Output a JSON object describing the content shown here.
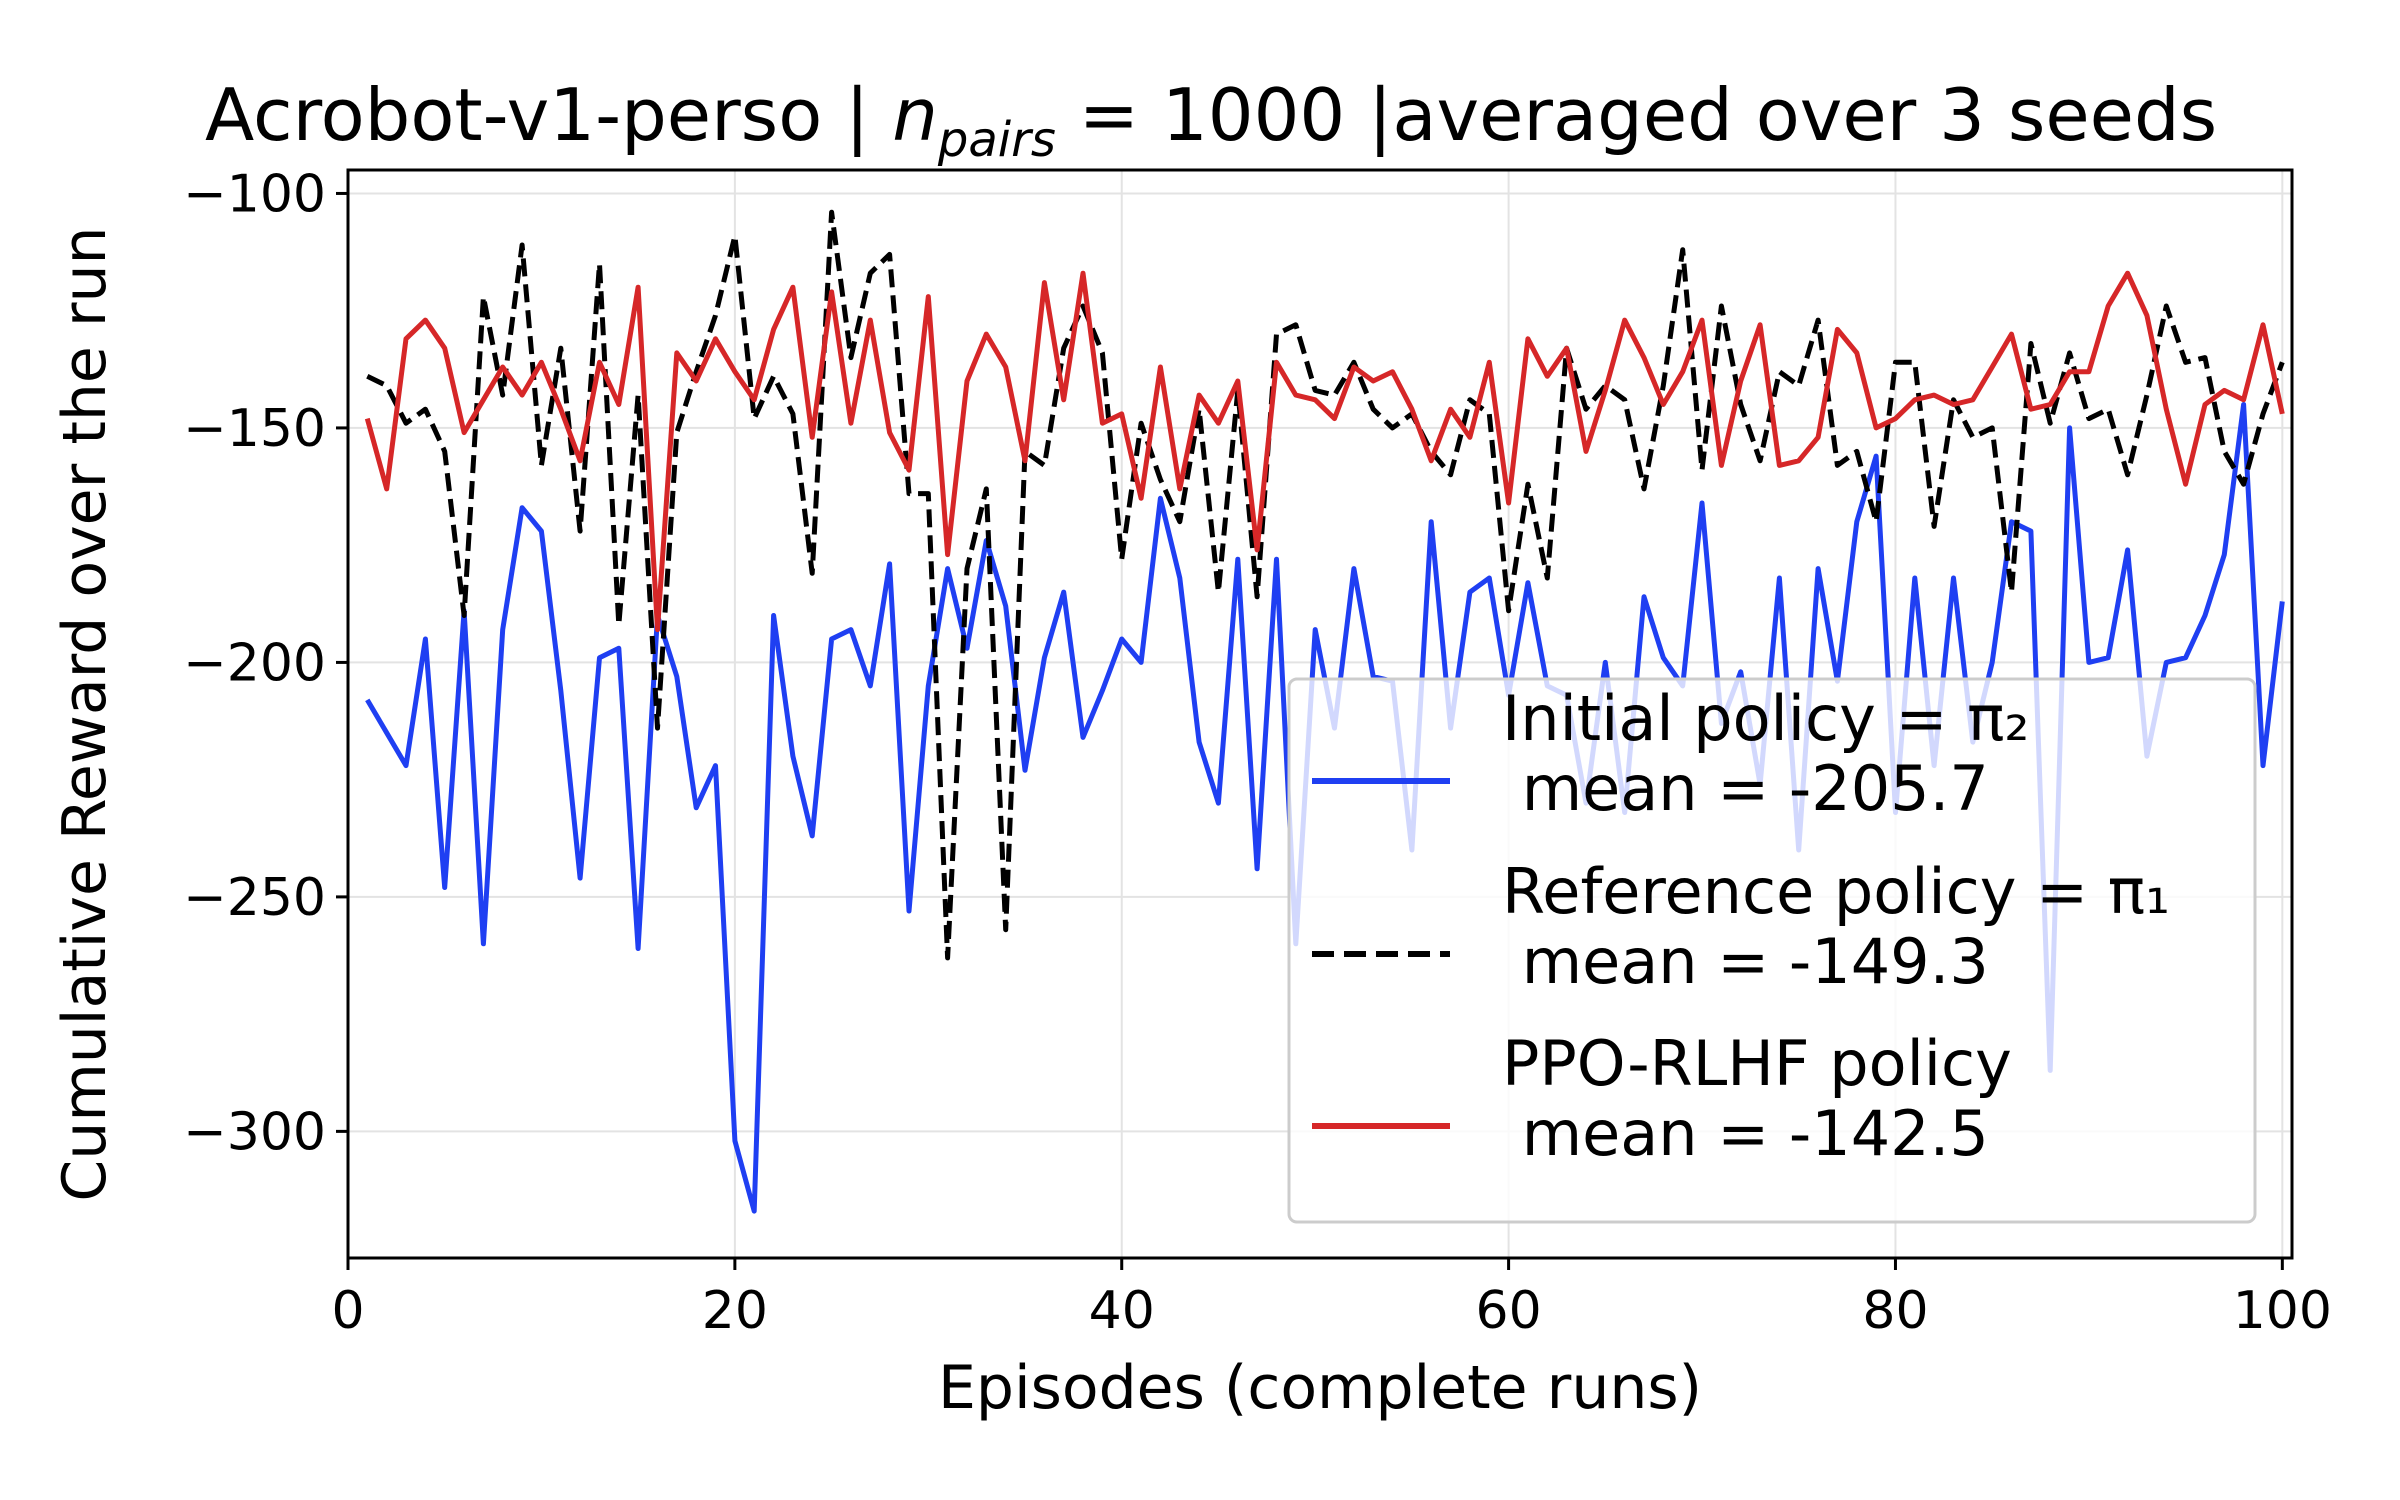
{
  "chart_data": {
    "type": "line",
    "title_prefix": "Acrobot-v1-perso | ",
    "title_var": "n",
    "title_sub": "pairs",
    "title_suffix": " = 1000 |averaged over 3 seeds",
    "xlabel": "Episodes (complete runs)",
    "ylabel": "Cumulative Reward over the run",
    "xlim": [
      0,
      100.5
    ],
    "ylim": [
      -327,
      -95
    ],
    "xticks": [
      0,
      20,
      40,
      60,
      80,
      100
    ],
    "yticks": [
      -300,
      -250,
      -200,
      -150,
      -100
    ],
    "grid": true,
    "legend_position": "lower right",
    "x": [
      1,
      2,
      3,
      4,
      5,
      6,
      7,
      8,
      9,
      10,
      11,
      12,
      13,
      14,
      15,
      16,
      17,
      18,
      19,
      20,
      21,
      22,
      23,
      24,
      25,
      26,
      27,
      28,
      29,
      30,
      31,
      32,
      33,
      34,
      35,
      36,
      37,
      38,
      39,
      40,
      41,
      42,
      43,
      44,
      45,
      46,
      47,
      48,
      49,
      50,
      51,
      52,
      53,
      54,
      55,
      56,
      57,
      58,
      59,
      60,
      61,
      62,
      63,
      64,
      65,
      66,
      67,
      68,
      69,
      70,
      71,
      72,
      73,
      74,
      75,
      76,
      77,
      78,
      79,
      80,
      81,
      82,
      83,
      84,
      85,
      86,
      87,
      88,
      89,
      90,
      91,
      92,
      93,
      94,
      95,
      96,
      97,
      98,
      99,
      100
    ],
    "series": [
      {
        "name": "Initial policy = π₂",
        "mean_text": " mean = -205.7",
        "color": "#1f3ff2",
        "dash": "solid",
        "values": [
          -208,
          -215,
          -222,
          -195,
          -248,
          -189,
          -260,
          -193,
          -167,
          -172,
          -206,
          -246,
          -199,
          -197,
          -261,
          -190,
          -203,
          -231,
          -222,
          -302,
          -317,
          -190,
          -220,
          -237,
          -195,
          -193,
          -205,
          -179,
          -253,
          -205,
          -180,
          -197,
          -174,
          -188,
          -223,
          -199,
          -185,
          -216,
          -206,
          -195,
          -200,
          -165,
          -182,
          -217,
          -230,
          -178,
          -244,
          -178,
          -260,
          -193,
          -214,
          -180,
          -203,
          -204,
          -240,
          -170,
          -214,
          -185,
          -182,
          -207,
          -183,
          -205,
          -207,
          -230,
          -200,
          -232,
          -186,
          -199,
          -205,
          -166,
          -213,
          -202,
          -226,
          -182,
          -240,
          -180,
          -204,
          -170,
          -156,
          -232,
          -182,
          -222,
          -182,
          -217,
          -200,
          -170,
          -172,
          -287,
          -150,
          -200,
          -199,
          -176,
          -220,
          -200,
          -199,
          -190,
          -177,
          -145,
          -222,
          -187
        ]
      },
      {
        "name": "Reference policy = π₁",
        "mean_text": " mean = -149.3",
        "color": "#000000",
        "dash": "dashed",
        "values": [
          -139,
          -141,
          -149,
          -146,
          -155,
          -190,
          -122,
          -143,
          -111,
          -158,
          -133,
          -172,
          -115,
          -192,
          -143,
          -214,
          -151,
          -138,
          -126,
          -109,
          -148,
          -139,
          -147,
          -181,
          -104,
          -135,
          -117,
          -113,
          -164,
          -164,
          -263,
          -180,
          -163,
          -257,
          -155,
          -158,
          -133,
          -124,
          -134,
          -178,
          -149,
          -161,
          -170,
          -146,
          -185,
          -142,
          -186,
          -130,
          -128,
          -142,
          -143,
          -136,
          -146,
          -150,
          -147,
          -155,
          -160,
          -144,
          -147,
          -189,
          -162,
          -182,
          -133,
          -146,
          -141,
          -144,
          -163,
          -141,
          -112,
          -159,
          -124,
          -145,
          -157,
          -138,
          -141,
          -127,
          -158,
          -155,
          -170,
          -136,
          -136,
          -171,
          -144,
          -152,
          -150,
          -185,
          -132,
          -149,
          -134,
          -148,
          -146,
          -160,
          -143,
          -124,
          -136,
          -135,
          -155,
          -162,
          -147,
          -136
        ]
      },
      {
        "name": "PPO-RLHF policy",
        "mean_text": " mean = -142.5",
        "color": "#d62728",
        "dash": "solid",
        "values": [
          -148,
          -163,
          -131,
          -127,
          -133,
          -151,
          -144,
          -137,
          -143,
          -136,
          -146,
          -157,
          -136,
          -145,
          -120,
          -193,
          -134,
          -140,
          -131,
          -138,
          -144,
          -129,
          -120,
          -152,
          -121,
          -149,
          -127,
          -151,
          -159,
          -122,
          -177,
          -140,
          -130,
          -137,
          -157,
          -119,
          -144,
          -117,
          -149,
          -147,
          -165,
          -137,
          -163,
          -143,
          -149,
          -140,
          -176,
          -136,
          -143,
          -144,
          -148,
          -137,
          -140,
          -138,
          -146,
          -157,
          -146,
          -152,
          -136,
          -166,
          -131,
          -139,
          -133,
          -155,
          -142,
          -127,
          -135,
          -145,
          -138,
          -127,
          -158,
          -140,
          -128,
          -158,
          -157,
          -152,
          -129,
          -134,
          -150,
          -148,
          -144,
          -143,
          -145,
          -144,
          -137,
          -130,
          -146,
          -145,
          -138,
          -138,
          -124,
          -117,
          -126,
          -146,
          -162,
          -145,
          -142,
          -144,
          -128,
          -147
        ]
      }
    ]
  }
}
